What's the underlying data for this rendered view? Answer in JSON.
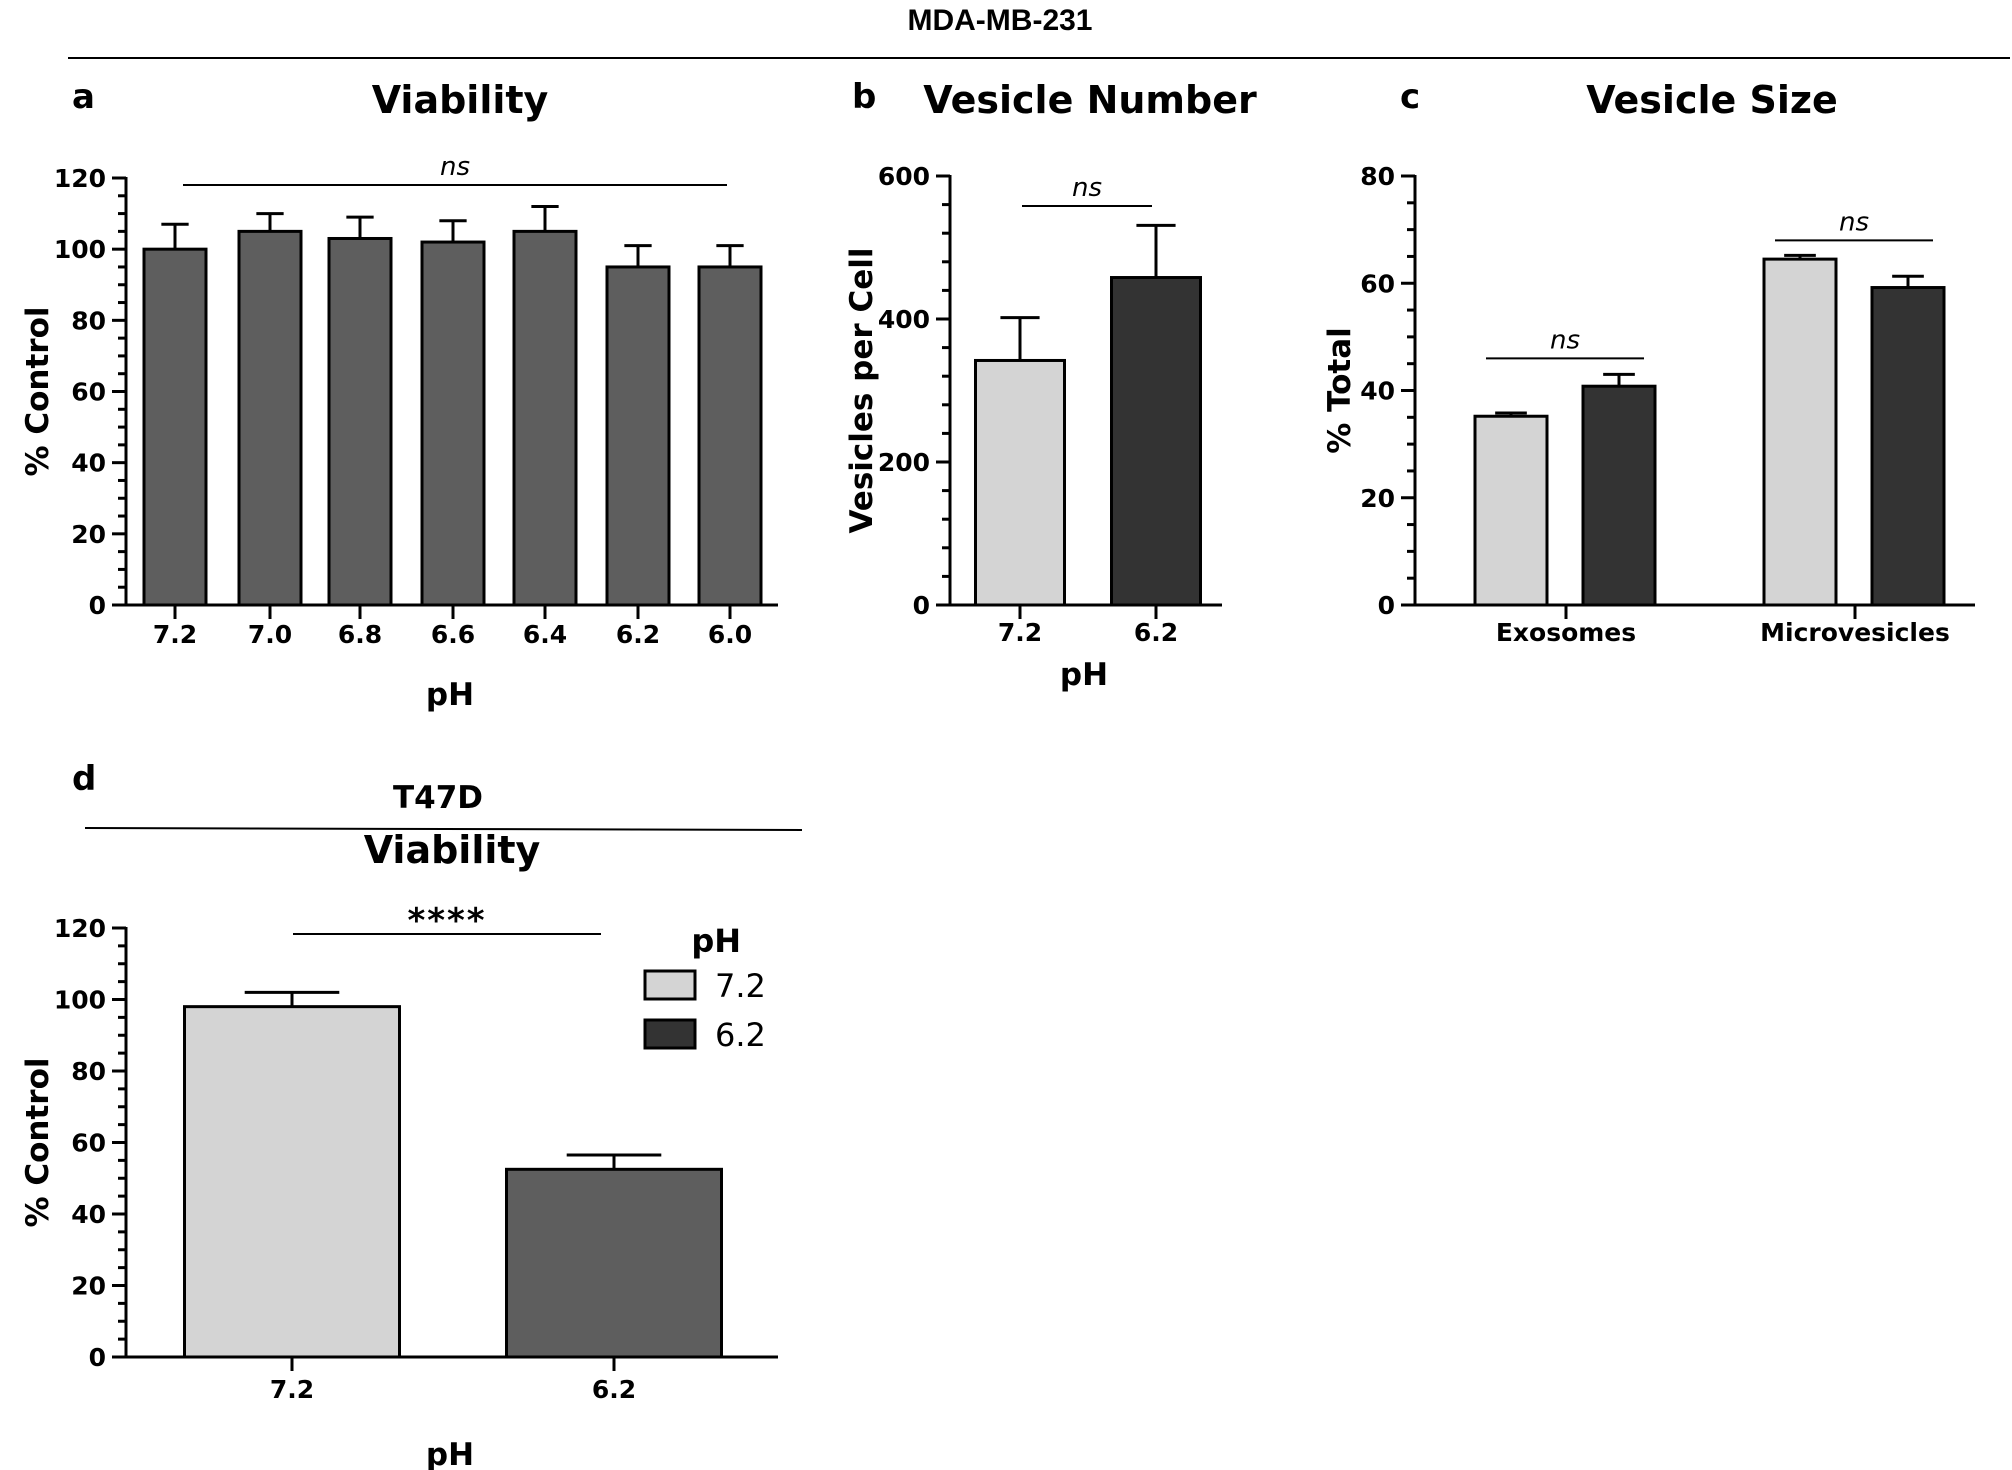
{
  "figure": {
    "top_header": "MDA-MB-231",
    "section_d_header": "T47D"
  },
  "colors": {
    "light": "#d4d4d4",
    "medium": "#5e5e5e",
    "dark": "#333333"
  },
  "chart_data": [
    {
      "panel": "a",
      "type": "bar",
      "title": "Viability",
      "xlabel": "pH",
      "ylabel": "% Control",
      "ylim": [
        0,
        120
      ],
      "yticks": [
        0,
        20,
        40,
        60,
        80,
        100,
        120
      ],
      "categories": [
        "7.2",
        "7.0",
        "6.8",
        "6.6",
        "6.4",
        "6.2",
        "6.0"
      ],
      "values": [
        100,
        105,
        103,
        102,
        105,
        95,
        95
      ],
      "errors": [
        7,
        5,
        6,
        6,
        7,
        6,
        6
      ],
      "color": "#5e5e5e",
      "annotation": {
        "text": "ns",
        "from": 0,
        "to": 6,
        "y": 118
      }
    },
    {
      "panel": "b",
      "type": "bar",
      "title": "Vesicle Number",
      "xlabel": "pH",
      "ylabel": "Vesicles per Cell",
      "ylim": [
        0,
        600
      ],
      "yticks": [
        0,
        200,
        400,
        600
      ],
      "categories": [
        "7.2",
        "6.2"
      ],
      "values": [
        342,
        458
      ],
      "errors": [
        60,
        73
      ],
      "colors": [
        "#d4d4d4",
        "#333333"
      ],
      "annotation": {
        "text": "ns",
        "from": 0,
        "to": 1,
        "y": 556
      }
    },
    {
      "panel": "c",
      "type": "bar",
      "title": "Vesicle Size",
      "xlabel": "",
      "ylabel": "% Total",
      "ylim": [
        0,
        80
      ],
      "yticks": [
        0,
        20,
        40,
        60,
        80
      ],
      "categories": [
        "Exosomes",
        "Microvesicles"
      ],
      "series": [
        {
          "color": "#d4d4d4",
          "values": [
            35.2,
            64.5
          ],
          "errors": [
            0.6,
            0.7
          ]
        },
        {
          "color": "#333333",
          "values": [
            40.8,
            59.2
          ],
          "errors": [
            2.2,
            2.1
          ]
        }
      ],
      "annotations": [
        {
          "text": "ns",
          "category": 0,
          "y": 46
        },
        {
          "text": "ns",
          "category": 1,
          "y": 68
        }
      ]
    },
    {
      "panel": "d",
      "type": "bar",
      "title": "Viability",
      "xlabel": "pH",
      "ylabel": "% Control",
      "ylim": [
        0,
        120
      ],
      "yticks": [
        0,
        20,
        40,
        60,
        80,
        100,
        120
      ],
      "categories": [
        "7.2",
        "6.2"
      ],
      "values": [
        98,
        52.5
      ],
      "errors": [
        4,
        4
      ],
      "colors": [
        "#d4d4d4",
        "#5e5e5e"
      ],
      "annotation": {
        "text": "****",
        "from": 0,
        "to": 1,
        "y": 118
      },
      "legend": {
        "title": "pH",
        "entries": [
          {
            "label": "7.2",
            "color": "#d4d4d4"
          },
          {
            "label": "6.2",
            "color": "#333333"
          }
        ],
        "position": "top-right"
      }
    }
  ]
}
